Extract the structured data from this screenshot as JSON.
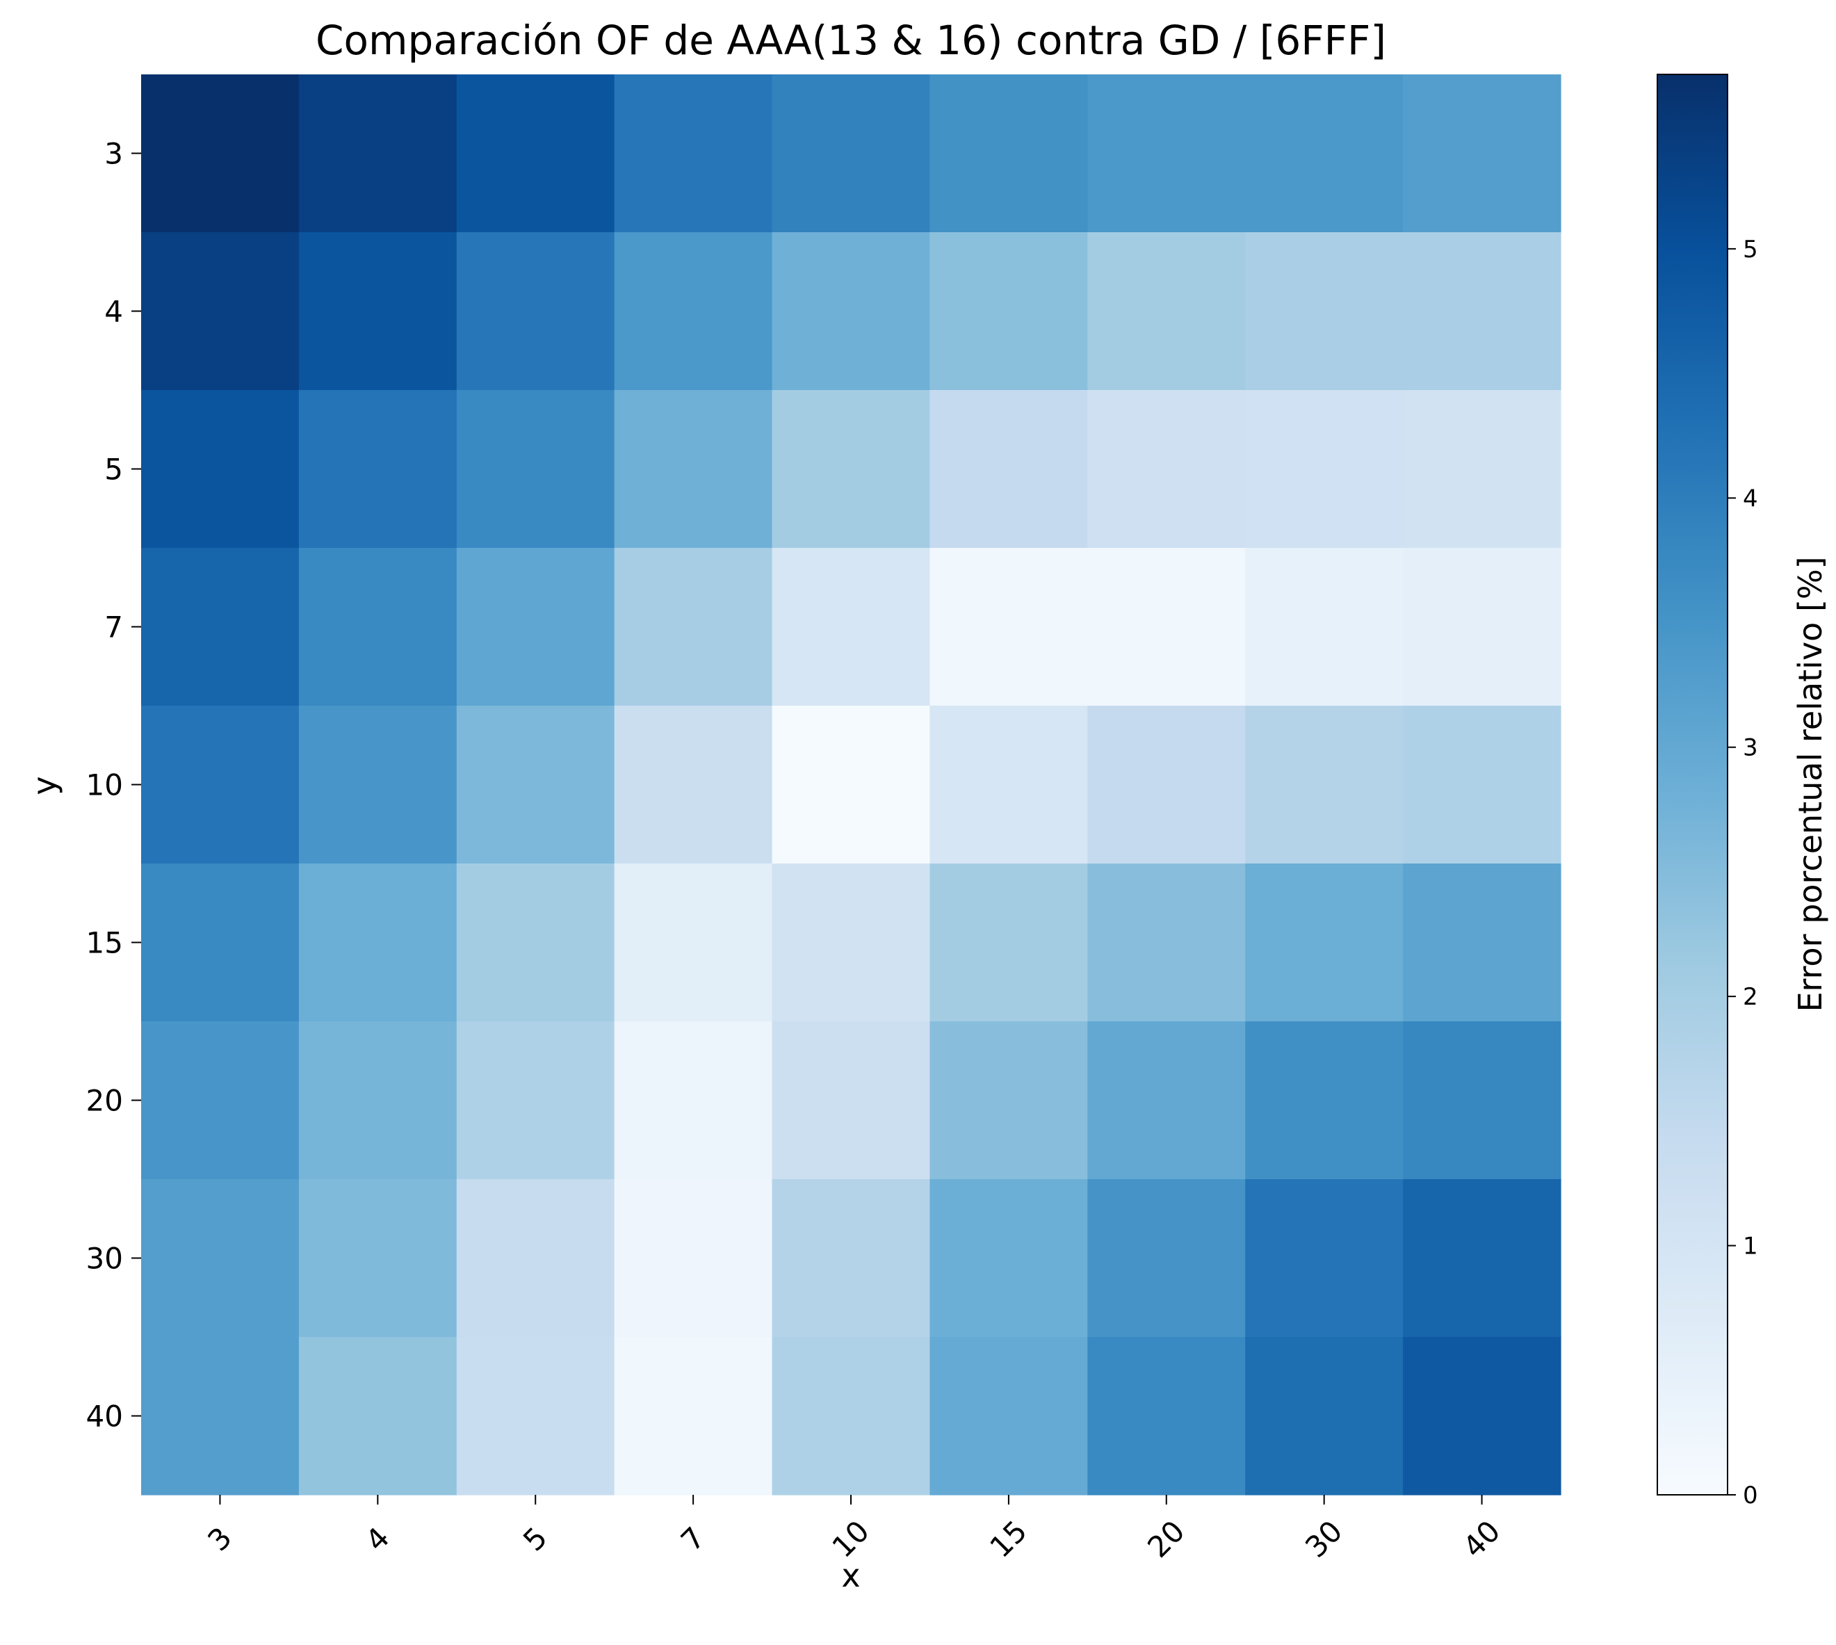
{
  "chart_data": {
    "type": "heatmap",
    "title": "Comparación OF de AAA(13 & 16) contra GD / [6FFF]",
    "xlabel": "x",
    "ylabel": "y",
    "x_categories": [
      "3",
      "4",
      "5",
      "7",
      "10",
      "15",
      "20",
      "30",
      "40"
    ],
    "y_categories": [
      "3",
      "4",
      "5",
      "7",
      "10",
      "15",
      "20",
      "30",
      "40"
    ],
    "values": [
      [
        5.7,
        5.35,
        4.9,
        4.15,
        3.9,
        3.55,
        3.4,
        3.4,
        3.25
      ],
      [
        5.35,
        4.9,
        4.15,
        3.4,
        2.8,
        2.4,
        2.05,
        1.95,
        1.95
      ],
      [
        4.9,
        4.2,
        3.75,
        2.8,
        2.05,
        1.45,
        1.2,
        1.15,
        1.1
      ],
      [
        4.55,
        3.75,
        3.05,
        2.0,
        0.95,
        0.2,
        0.2,
        0.45,
        0.55
      ],
      [
        4.2,
        3.45,
        2.6,
        1.3,
        0.05,
        0.95,
        1.45,
        1.75,
        1.85
      ],
      [
        3.75,
        2.85,
        2.05,
        0.6,
        1.1,
        2.05,
        2.45,
        2.85,
        3.1
      ],
      [
        3.45,
        2.7,
        1.85,
        0.3,
        1.25,
        2.45,
        3.0,
        3.6,
        3.8
      ],
      [
        3.25,
        2.55,
        1.4,
        0.25,
        1.75,
        2.85,
        3.5,
        4.2,
        4.55
      ],
      [
        3.25,
        2.3,
        1.35,
        0.2,
        1.85,
        2.95,
        3.75,
        4.35,
        4.8
      ]
    ],
    "colorbar": {
      "label": "Error porcentual relativo [%]",
      "range": [
        0,
        5.7
      ],
      "ticks": [
        "0",
        "1",
        "2",
        "3",
        "4",
        "5"
      ],
      "colormap": "Blues"
    },
    "grid": false,
    "legend": "none"
  }
}
